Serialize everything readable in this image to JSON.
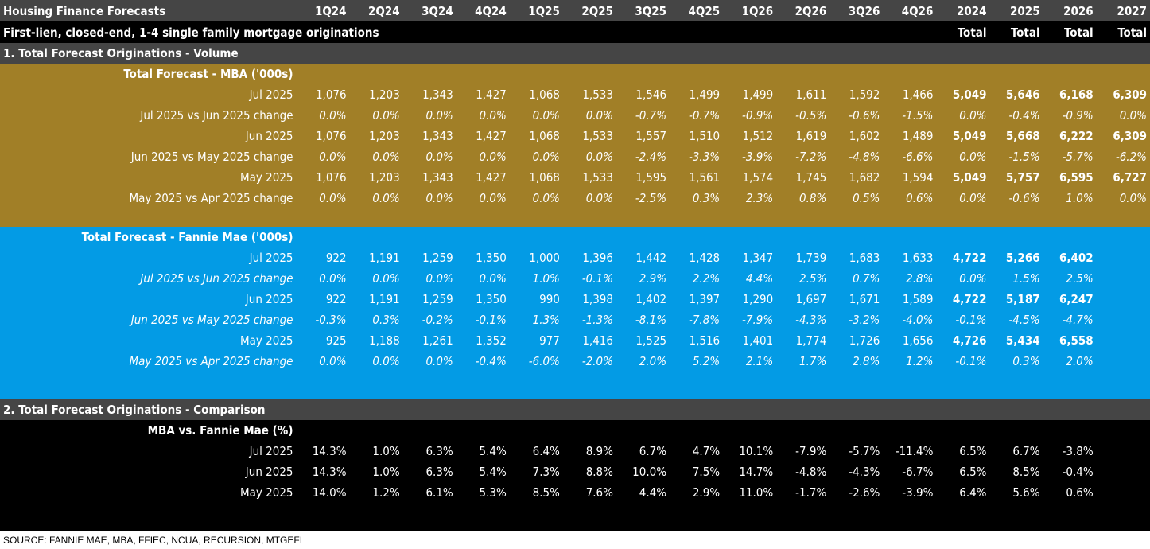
{
  "header": {
    "title": "Housing Finance Forecasts",
    "columns": [
      "1Q24",
      "2Q24",
      "3Q24",
      "4Q24",
      "1Q25",
      "2Q25",
      "3Q25",
      "4Q25",
      "1Q26",
      "2Q26",
      "3Q26",
      "4Q26",
      "2024",
      "2025",
      "2026",
      "2027"
    ],
    "subtitle": "First-lien, closed-end, 1-4 single family mortgage originations",
    "total_labels": [
      "Total",
      "Total",
      "Total",
      "Total"
    ]
  },
  "sections": [
    {
      "title": "1. Total Forecast Originations - Volume",
      "groups": [
        {
          "title": "Total Forecast - MBA ('000s)",
          "color": "#A17F27",
          "italic_change_labels": false,
          "rows": [
            {
              "label": "Jul 2025",
              "type": "value",
              "values": [
                "1,076",
                "1,203",
                "1,343",
                "1,427",
                "1,068",
                "1,533",
                "1,546",
                "1,499",
                "1,499",
                "1,611",
                "1,592",
                "1,466",
                "5,049",
                "5,646",
                "6,168",
                "6,309"
              ]
            },
            {
              "label": "Jul 2025 vs Jun 2025 change",
              "type": "change",
              "values": [
                "0.0%",
                "0.0%",
                "0.0%",
                "0.0%",
                "0.0%",
                "0.0%",
                "-0.7%",
                "-0.7%",
                "-0.9%",
                "-0.5%",
                "-0.6%",
                "-1.5%",
                "0.0%",
                "-0.4%",
                "-0.9%",
                "0.0%"
              ]
            },
            {
              "label": "Jun 2025",
              "type": "value",
              "values": [
                "1,076",
                "1,203",
                "1,343",
                "1,427",
                "1,068",
                "1,533",
                "1,557",
                "1,510",
                "1,512",
                "1,619",
                "1,602",
                "1,489",
                "5,049",
                "5,668",
                "6,222",
                "6,309"
              ]
            },
            {
              "label": "Jun 2025 vs May 2025 change",
              "type": "change",
              "values": [
                "0.0%",
                "0.0%",
                "0.0%",
                "0.0%",
                "0.0%",
                "0.0%",
                "-2.4%",
                "-3.3%",
                "-3.9%",
                "-7.2%",
                "-4.8%",
                "-6.6%",
                "0.0%",
                "-1.5%",
                "-5.7%",
                "-6.2%"
              ]
            },
            {
              "label": "May 2025",
              "type": "value",
              "values": [
                "1,076",
                "1,203",
                "1,343",
                "1,427",
                "1,068",
                "1,533",
                "1,595",
                "1,561",
                "1,574",
                "1,745",
                "1,682",
                "1,594",
                "5,049",
                "5,757",
                "6,595",
                "6,727"
              ]
            },
            {
              "label": "May 2025 vs Apr 2025 change",
              "type": "change",
              "values": [
                "0.0%",
                "0.0%",
                "0.0%",
                "0.0%",
                "0.0%",
                "0.0%",
                "-2.5%",
                "0.3%",
                "2.3%",
                "0.8%",
                "0.5%",
                "0.6%",
                "0.0%",
                "-0.6%",
                "1.0%",
                "0.0%"
              ]
            }
          ]
        },
        {
          "title": "Total Forecast - Fannie Mae ('000s)",
          "color": "#039BE5",
          "italic_change_labels": true,
          "rows": [
            {
              "label": "Jul 2025",
              "type": "value",
              "values": [
                "922",
                "1,191",
                "1,259",
                "1,350",
                "1,000",
                "1,396",
                "1,442",
                "1,428",
                "1,347",
                "1,739",
                "1,683",
                "1,633",
                "4,722",
                "5,266",
                "6,402",
                ""
              ]
            },
            {
              "label": "Jul 2025 vs Jun 2025 change",
              "type": "change",
              "values": [
                "0.0%",
                "0.0%",
                "0.0%",
                "0.0%",
                "1.0%",
                "-0.1%",
                "2.9%",
                "2.2%",
                "4.4%",
                "2.5%",
                "0.7%",
                "2.8%",
                "0.0%",
                "1.5%",
                "2.5%",
                ""
              ]
            },
            {
              "label": "Jun 2025",
              "type": "value",
              "values": [
                "922",
                "1,191",
                "1,259",
                "1,350",
                "990",
                "1,398",
                "1,402",
                "1,397",
                "1,290",
                "1,697",
                "1,671",
                "1,589",
                "4,722",
                "5,187",
                "6,247",
                ""
              ]
            },
            {
              "label": "Jun 2025 vs May 2025 change",
              "type": "change",
              "values": [
                "-0.3%",
                "0.3%",
                "-0.2%",
                "-0.1%",
                "1.3%",
                "-1.3%",
                "-8.1%",
                "-7.8%",
                "-7.9%",
                "-4.3%",
                "-3.2%",
                "-4.0%",
                "-0.1%",
                "-4.5%",
                "-4.7%",
                ""
              ]
            },
            {
              "label": "May 2025",
              "type": "value",
              "values": [
                "925",
                "1,188",
                "1,261",
                "1,352",
                "977",
                "1,416",
                "1,525",
                "1,516",
                "1,401",
                "1,774",
                "1,726",
                "1,656",
                "4,726",
                "5,434",
                "6,558",
                ""
              ]
            },
            {
              "label": "May 2025 vs Apr 2025 change",
              "type": "change",
              "values": [
                "0.0%",
                "0.0%",
                "0.0%",
                "-0.4%",
                "-6.0%",
                "-2.0%",
                "2.0%",
                "5.2%",
                "2.1%",
                "1.7%",
                "2.8%",
                "1.2%",
                "-0.1%",
                "0.3%",
                "2.0%",
                ""
              ]
            }
          ]
        }
      ]
    },
    {
      "title": "2. Total Forecast Originations - Comparison",
      "groups": [
        {
          "title": "MBA vs. Fannie Mae (%)",
          "color": "#000000",
          "italic_change_labels": false,
          "rows": [
            {
              "label": "Jul 2025",
              "type": "plain",
              "values": [
                "14.3%",
                "1.0%",
                "6.3%",
                "5.4%",
                "6.4%",
                "8.9%",
                "6.7%",
                "4.7%",
                "10.1%",
                "-7.9%",
                "-5.7%",
                "-11.4%",
                "6.5%",
                "6.7%",
                "-3.8%",
                ""
              ]
            },
            {
              "label": "Jun 2025",
              "type": "plain",
              "values": [
                "14.3%",
                "1.0%",
                "6.3%",
                "5.4%",
                "7.3%",
                "8.8%",
                "10.0%",
                "7.5%",
                "14.7%",
                "-4.8%",
                "-4.3%",
                "-6.7%",
                "6.5%",
                "8.5%",
                "-0.4%",
                ""
              ]
            },
            {
              "label": "May 2025",
              "type": "plain",
              "values": [
                "14.0%",
                "1.2%",
                "6.1%",
                "5.3%",
                "8.5%",
                "7.6%",
                "4.4%",
                "2.9%",
                "11.0%",
                "-1.7%",
                "-2.6%",
                "-3.9%",
                "6.4%",
                "5.6%",
                "0.6%",
                ""
              ]
            }
          ]
        }
      ]
    }
  ],
  "source": "SOURCE: FANNIE MAE, MBA, FFIEC, NCUA, RECURSION, MTGEFI"
}
